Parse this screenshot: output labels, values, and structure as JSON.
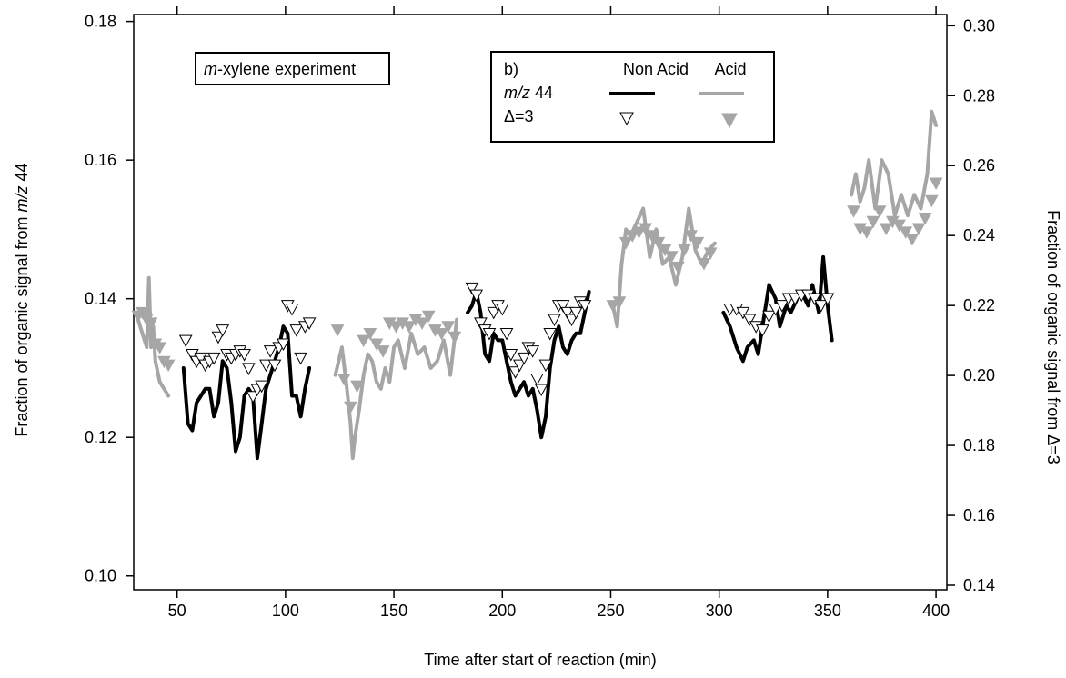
{
  "chart_data": {
    "type": "line",
    "xlabel": "Time after start of reaction (min)",
    "ylabel": {
      "pre": "Fraction of organic signal from ",
      "italic": "m/z",
      "post": " 44"
    },
    "y2label": "Fraction of organic signal from Δ=3",
    "xlim": [
      30,
      405
    ],
    "ylim": [
      0.098,
      0.181
    ],
    "y2lim": [
      0.1387,
      0.3032
    ],
    "xticks": [
      50,
      100,
      150,
      200,
      250,
      300,
      350,
      400
    ],
    "xtick_labels": [
      "50",
      "100",
      "150",
      "200",
      "250",
      "300",
      "350",
      "400"
    ],
    "yticks": [
      0.1,
      0.12,
      0.14,
      0.16,
      0.18
    ],
    "ytick_labels": [
      "0.10",
      "0.12",
      "0.14",
      "0.16",
      "0.18"
    ],
    "y2ticks": [
      0.14,
      0.16,
      0.18,
      0.2,
      0.22,
      0.24,
      0.26,
      0.28,
      0.3
    ],
    "y2tick_labels": [
      "0.14",
      "0.16",
      "0.18",
      "0.20",
      "0.22",
      "0.24",
      "0.26",
      "0.28",
      "0.30"
    ],
    "grid": false,
    "annotation": {
      "italic": "m",
      "rest": "-xylene experiment"
    },
    "legend": {
      "panel": "b)",
      "col1": "Non Acid",
      "col2": "Acid",
      "row1": {
        "italic": "m/z",
        "rest": " 44"
      },
      "row2": "Δ=3",
      "placement": "top-center"
    },
    "colors": {
      "non_acid": "#000000",
      "acid": "#a6a6a6"
    },
    "series": [
      {
        "group": "acid",
        "kind": "line",
        "axis": "left",
        "x": [
          32,
          34,
          36,
          37,
          38,
          39,
          40,
          42,
          44,
          46
        ],
        "y": [
          0.137,
          0.135,
          0.133,
          0.143,
          0.133,
          0.136,
          0.131,
          0.128,
          0.127,
          0.126
        ]
      },
      {
        "group": "acid",
        "kind": "line",
        "axis": "left",
        "x": [
          123,
          126,
          128,
          130,
          131,
          132,
          134,
          136,
          138,
          140,
          142,
          144,
          146,
          148,
          150,
          152,
          155,
          158,
          161,
          164,
          167,
          170,
          173,
          176,
          179
        ],
        "y": [
          0.129,
          0.133,
          0.128,
          0.122,
          0.117,
          0.12,
          0.124,
          0.129,
          0.132,
          0.131,
          0.128,
          0.127,
          0.13,
          0.128,
          0.133,
          0.134,
          0.13,
          0.135,
          0.132,
          0.133,
          0.13,
          0.131,
          0.134,
          0.129,
          0.137
        ]
      },
      {
        "group": "acid",
        "kind": "line",
        "axis": "left",
        "x": [
          251,
          253,
          255,
          257,
          259,
          262,
          265,
          268,
          271,
          274,
          277,
          280,
          283,
          286,
          289,
          292,
          295,
          298
        ],
        "y": [
          0.139,
          0.136,
          0.145,
          0.15,
          0.149,
          0.151,
          0.153,
          0.146,
          0.15,
          0.145,
          0.146,
          0.142,
          0.146,
          0.153,
          0.147,
          0.145,
          0.147,
          0.148
        ]
      },
      {
        "group": "acid",
        "kind": "line",
        "axis": "left",
        "x": [
          361,
          363,
          365,
          367,
          369,
          372,
          375,
          378,
          381,
          384,
          387,
          390,
          393,
          396,
          398,
          400
        ],
        "y": [
          0.155,
          0.158,
          0.154,
          0.156,
          0.16,
          0.153,
          0.16,
          0.158,
          0.152,
          0.155,
          0.152,
          0.155,
          0.153,
          0.158,
          0.167,
          0.165
        ]
      },
      {
        "group": "non_acid",
        "kind": "line",
        "axis": "left",
        "x": [
          53,
          55,
          57,
          59,
          61,
          63,
          65,
          67,
          69,
          71,
          73,
          75,
          77,
          79,
          81,
          83,
          85,
          87,
          89,
          91,
          93,
          95,
          97,
          99,
          101,
          103,
          105,
          107,
          109,
          111
        ],
        "y": [
          0.13,
          0.122,
          0.121,
          0.125,
          0.126,
          0.127,
          0.127,
          0.123,
          0.125,
          0.131,
          0.13,
          0.125,
          0.118,
          0.12,
          0.126,
          0.127,
          0.126,
          0.117,
          0.122,
          0.127,
          0.129,
          0.131,
          0.133,
          0.136,
          0.135,
          0.126,
          0.126,
          0.123,
          0.127,
          0.13
        ]
      },
      {
        "group": "non_acid",
        "kind": "line",
        "axis": "left",
        "x": [
          184,
          186,
          188,
          190,
          192,
          194,
          196,
          198,
          200,
          202,
          204,
          206,
          208,
          210,
          212,
          214,
          216,
          218,
          220,
          222,
          224,
          226,
          228,
          230,
          232,
          234,
          236,
          238,
          240
        ],
        "y": [
          0.138,
          0.139,
          0.141,
          0.138,
          0.132,
          0.131,
          0.135,
          0.134,
          0.134,
          0.131,
          0.128,
          0.126,
          0.127,
          0.128,
          0.126,
          0.127,
          0.124,
          0.12,
          0.123,
          0.13,
          0.134,
          0.136,
          0.133,
          0.132,
          0.134,
          0.135,
          0.135,
          0.138,
          0.141
        ]
      },
      {
        "group": "non_acid",
        "kind": "line",
        "axis": "left",
        "x": [
          302,
          305,
          308,
          311,
          313,
          316,
          318,
          321,
          323,
          326,
          328,
          331,
          333,
          336,
          338,
          341,
          343,
          346,
          348,
          350,
          352
        ],
        "y": [
          0.138,
          0.136,
          0.133,
          0.131,
          0.133,
          0.134,
          0.132,
          0.138,
          0.142,
          0.14,
          0.136,
          0.139,
          0.138,
          0.14,
          0.141,
          0.139,
          0.142,
          0.138,
          0.146,
          0.139,
          0.134
        ]
      },
      {
        "group": "acid",
        "kind": "marker",
        "axis": "right",
        "x": [
          32,
          34,
          36,
          38,
          40,
          42,
          44,
          46
        ],
        "y": [
          0.217,
          0.218,
          0.216,
          0.215,
          0.209,
          0.208,
          0.204,
          0.203
        ]
      },
      {
        "group": "acid",
        "kind": "marker",
        "axis": "right",
        "x": [
          124,
          127,
          130,
          133,
          136,
          139,
          142,
          145,
          148,
          151,
          154,
          157,
          160,
          163,
          166,
          169,
          172,
          175,
          178
        ],
        "y": [
          0.213,
          0.199,
          0.191,
          0.197,
          0.21,
          0.212,
          0.209,
          0.207,
          0.215,
          0.214,
          0.215,
          0.214,
          0.216,
          0.215,
          0.217,
          0.213,
          0.212,
          0.214,
          0.211
        ]
      },
      {
        "group": "acid",
        "kind": "marker",
        "axis": "right",
        "x": [
          251,
          254,
          257,
          260,
          263,
          266,
          269,
          272,
          275,
          278,
          281,
          284,
          287,
          290,
          293,
          296
        ],
        "y": [
          0.22,
          0.221,
          0.238,
          0.24,
          0.241,
          0.242,
          0.24,
          0.238,
          0.236,
          0.234,
          0.231,
          0.236,
          0.24,
          0.238,
          0.232,
          0.235
        ]
      },
      {
        "group": "acid",
        "kind": "marker",
        "axis": "right",
        "x": [
          362,
          365,
          368,
          371,
          374,
          377,
          380,
          383,
          386,
          389,
          392,
          395,
          398,
          400
        ],
        "y": [
          0.247,
          0.242,
          0.241,
          0.244,
          0.247,
          0.242,
          0.244,
          0.243,
          0.241,
          0.239,
          0.242,
          0.245,
          0.25,
          0.255
        ]
      },
      {
        "group": "non_acid",
        "kind": "marker",
        "axis": "right",
        "x": [
          54,
          57,
          59,
          61,
          63,
          65,
          67,
          69,
          71,
          73,
          75,
          77,
          79,
          81,
          83,
          85,
          87,
          89,
          91,
          93,
          95,
          97,
          99,
          101,
          103,
          105,
          107,
          109,
          111
        ],
        "y": [
          0.21,
          0.206,
          0.204,
          0.205,
          0.203,
          0.204,
          0.205,
          0.211,
          0.213,
          0.206,
          0.205,
          0.206,
          0.207,
          0.206,
          0.202,
          0.194,
          0.196,
          0.197,
          0.203,
          0.207,
          0.203,
          0.208,
          0.209,
          0.22,
          0.219,
          0.213,
          0.205,
          0.214,
          0.215
        ]
      },
      {
        "group": "non_acid",
        "kind": "marker",
        "axis": "right",
        "x": [
          186,
          188,
          190,
          192,
          194,
          196,
          198,
          200,
          202,
          204,
          206,
          208,
          210,
          212,
          214,
          216,
          218,
          220,
          222,
          224,
          226,
          228,
          230,
          232,
          234,
          236,
          238
        ],
        "y": [
          0.225,
          0.223,
          0.215,
          0.213,
          0.212,
          0.218,
          0.22,
          0.219,
          0.212,
          0.206,
          0.201,
          0.203,
          0.205,
          0.208,
          0.207,
          0.199,
          0.196,
          0.203,
          0.212,
          0.216,
          0.22,
          0.22,
          0.218,
          0.216,
          0.218,
          0.221,
          0.22
        ]
      },
      {
        "group": "non_acid",
        "kind": "marker",
        "axis": "right",
        "x": [
          305,
          308,
          311,
          314,
          317,
          320,
          323,
          326,
          329,
          332,
          335,
          338,
          341,
          344,
          347,
          350
        ],
        "y": [
          0.219,
          0.219,
          0.218,
          0.216,
          0.214,
          0.213,
          0.217,
          0.219,
          0.22,
          0.222,
          0.222,
          0.223,
          0.223,
          0.222,
          0.22,
          0.222
        ]
      }
    ]
  }
}
